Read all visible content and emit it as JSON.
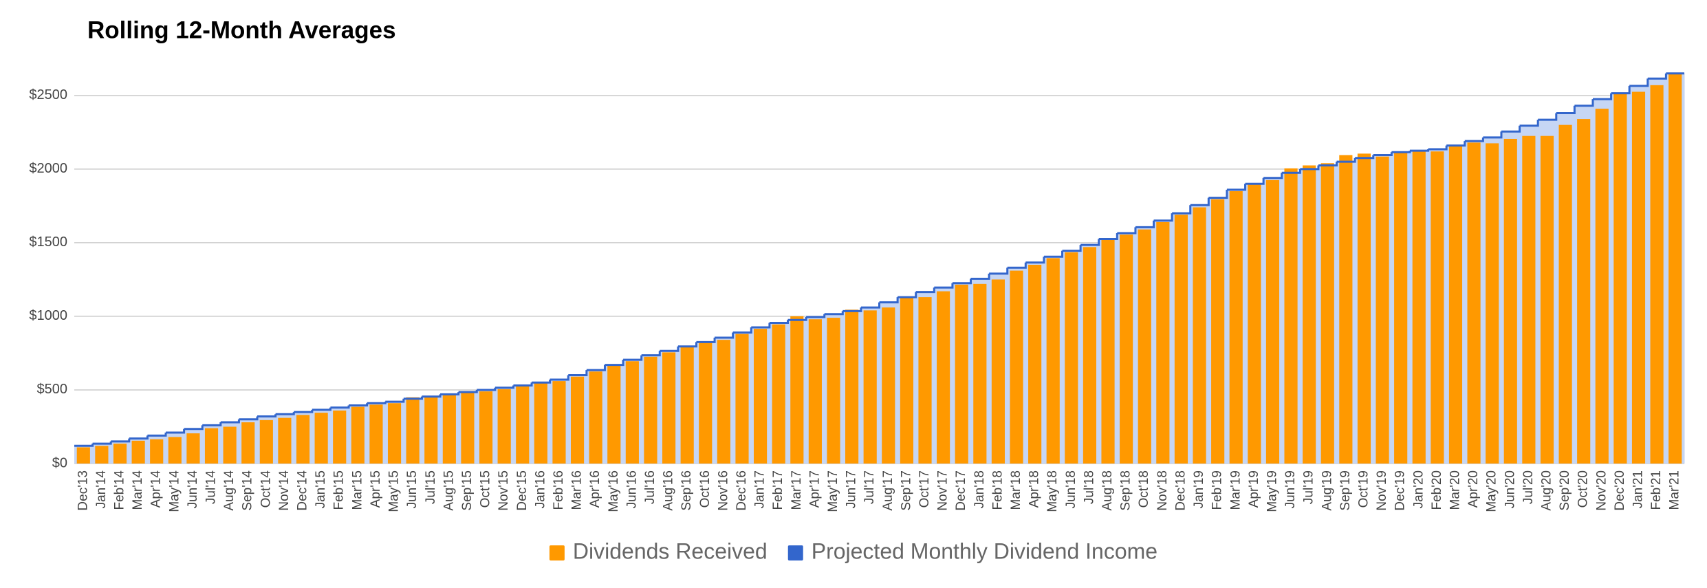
{
  "chart_data": {
    "type": "bar-step",
    "title": "Rolling 12-Month Averages",
    "categories": [
      "Dec'13",
      "Jan'14",
      "Feb'14",
      "Mar'14",
      "Apr'14",
      "May'14",
      "Jun'14",
      "Jul'14",
      "Aug'14",
      "Sep'14",
      "Oct'14",
      "Nov'14",
      "Dec'14",
      "Jan'15",
      "Feb'15",
      "Mar'15",
      "Apr'15",
      "May'15",
      "Jun'15",
      "Jul'15",
      "Aug'15",
      "Sep'15",
      "Oct'15",
      "Nov'15",
      "Dec'15",
      "Jan'16",
      "Feb'16",
      "Mar'16",
      "Apr'16",
      "May'16",
      "Jun'16",
      "Jul'16",
      "Aug'16",
      "Sep'16",
      "Oct'16",
      "Nov'16",
      "Dec'16",
      "Jan'17",
      "Feb'17",
      "Mar'17",
      "Apr'17",
      "May'17",
      "Jun'17",
      "Jul'17",
      "Aug'17",
      "Sep'17",
      "Oct'17",
      "Nov'17",
      "Dec'17",
      "Jan'18",
      "Feb'18",
      "Mar'18",
      "Apr'18",
      "May'18",
      "Jun'18",
      "Jul'18",
      "Aug'18",
      "Sep'18",
      "Oct'18",
      "Nov'18",
      "Dec'18",
      "Jan'19",
      "Feb'19",
      "Mar'19",
      "Apr'19",
      "May'19",
      "Jun'19",
      "Jul'19",
      "Aug'19",
      "Sep'19",
      "Oct'19",
      "Nov'19",
      "Dec'19",
      "Jan'20",
      "Feb'20",
      "Mar'20",
      "Apr'20",
      "May'20",
      "Jun'20",
      "Jul'20",
      "Aug'20",
      "Sep'20",
      "Oct'20",
      "Nov'20",
      "Dec'20",
      "Jan'21",
      "Feb'21",
      "Mar'21"
    ],
    "series": [
      {
        "name": "Dividends Received",
        "color": "#ff9900",
        "values": [
          110,
          120,
          135,
          155,
          165,
          180,
          205,
          240,
          250,
          280,
          295,
          310,
          330,
          345,
          360,
          385,
          400,
          410,
          450,
          450,
          465,
          480,
          490,
          505,
          525,
          545,
          560,
          590,
          625,
          665,
          695,
          725,
          755,
          790,
          820,
          840,
          880,
          915,
          945,
          1000,
          980,
          990,
          1045,
          1040,
          1060,
          1130,
          1130,
          1170,
          1215,
          1220,
          1250,
          1310,
          1350,
          1395,
          1435,
          1470,
          1520,
          1555,
          1590,
          1640,
          1690,
          1740,
          1795,
          1850,
          1895,
          1925,
          2005,
          2025,
          2040,
          2095,
          2105,
          2085,
          2110,
          2120,
          2120,
          2155,
          2180,
          2175,
          2205,
          2225,
          2225,
          2300,
          2340,
          2410,
          2510,
          2525,
          2570,
          2650
        ]
      },
      {
        "name": "Projected Monthly Dividend Income",
        "color": "#3366cc",
        "values": [
          120,
          135,
          150,
          170,
          190,
          210,
          235,
          260,
          280,
          300,
          320,
          335,
          350,
          365,
          380,
          395,
          410,
          420,
          440,
          455,
          470,
          485,
          500,
          515,
          530,
          550,
          570,
          600,
          635,
          670,
          705,
          735,
          765,
          795,
          825,
          855,
          890,
          925,
          955,
          975,
          995,
          1015,
          1035,
          1060,
          1095,
          1130,
          1165,
          1195,
          1225,
          1255,
          1290,
          1330,
          1365,
          1405,
          1445,
          1485,
          1525,
          1565,
          1605,
          1650,
          1700,
          1755,
          1805,
          1860,
          1900,
          1940,
          1975,
          2000,
          2025,
          2050,
          2075,
          2095,
          2115,
          2125,
          2135,
          2160,
          2190,
          2215,
          2255,
          2295,
          2335,
          2380,
          2430,
          2475,
          2515,
          2565,
          2615,
          2650
        ]
      }
    ],
    "ylim": [
      0,
      2700
    ],
    "yticks": [
      {
        "value": 0,
        "label": "$0"
      },
      {
        "value": 500,
        "label": "$500"
      },
      {
        "value": 1000,
        "label": "$1000"
      },
      {
        "value": 1500,
        "label": "$1500"
      },
      {
        "value": 2000,
        "label": "$2000"
      },
      {
        "value": 2500,
        "label": "$2500"
      }
    ],
    "grid": true
  }
}
